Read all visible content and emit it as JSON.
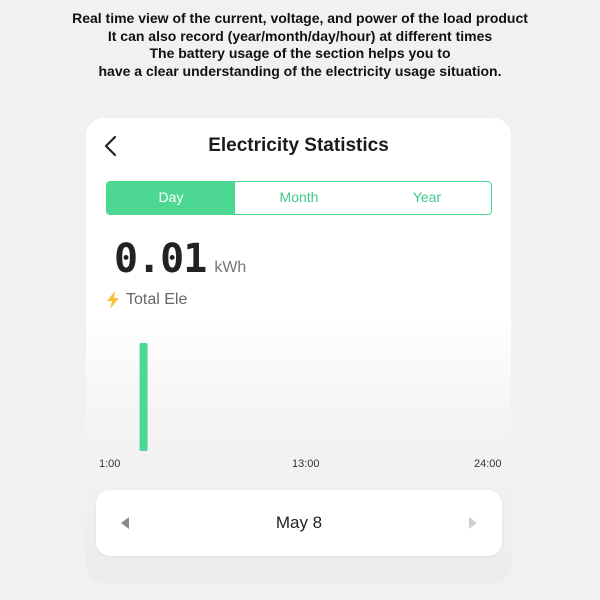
{
  "caption": {
    "lines": [
      "Real time view of the current, voltage, and power of the load product",
      "It can also record (year/month/day/hour) at different times",
      "The battery usage of the section helps you to",
      "have a clear understanding of the electricity usage situation."
    ]
  },
  "header": {
    "title": "Electricity Statistics",
    "back_icon": "chevron-left-icon"
  },
  "tabs": [
    {
      "label": "Day",
      "active": true
    },
    {
      "label": "Month",
      "active": false
    },
    {
      "label": "Year",
      "active": false
    }
  ],
  "summary": {
    "value": "0.01",
    "unit": "kWh",
    "label": "Total Ele",
    "icon": "lightning-bolt-icon"
  },
  "chart_data": {
    "type": "bar",
    "x_ticks": [
      "1:00",
      "13:00",
      "24:00"
    ],
    "x": [
      2
    ],
    "values": [
      0.01
    ],
    "xlim": [
      1,
      24
    ],
    "ylim": [
      0,
      0.01
    ],
    "bar_color": "#4cd893",
    "grid": false
  },
  "date_picker": {
    "label": "May 8",
    "prev_icon": "triangle-left-icon",
    "next_icon": "triangle-right-icon"
  },
  "colors": {
    "accent": "#4cd893",
    "bolt": "#f7c137"
  }
}
